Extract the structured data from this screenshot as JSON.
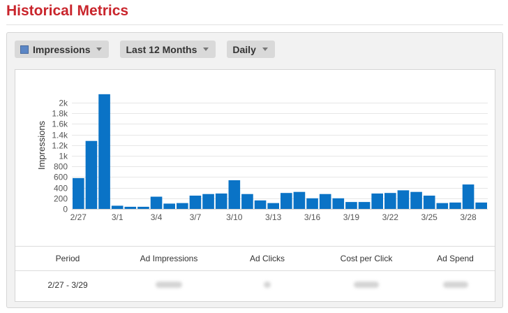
{
  "page": {
    "title": "Historical Metrics"
  },
  "toolbar": {
    "metric_label": "Impressions",
    "metric_swatch_color": "#5b86c5",
    "range_label": "Last 12 Months",
    "interval_label": "Daily"
  },
  "chart_data": {
    "type": "bar",
    "ylabel": "Impressions",
    "xlabel": "",
    "ylim": [
      0,
      2150
    ],
    "yticks": [
      0,
      200,
      400,
      600,
      800,
      1000,
      1200,
      1400,
      1600,
      1800,
      2000
    ],
    "ytick_labels": [
      "0",
      "200",
      "400",
      "600",
      "800",
      "1k",
      "1.2k",
      "1.4k",
      "1.6k",
      "1.8k",
      "2k"
    ],
    "bar_color": "#0a73c6",
    "grid": true,
    "categories": [
      "2/27",
      "2/28",
      "2/29",
      "3/1",
      "3/2",
      "3/3",
      "3/4",
      "3/5",
      "3/6",
      "3/7",
      "3/8",
      "3/9",
      "3/10",
      "3/11",
      "3/12",
      "3/13",
      "3/14",
      "3/15",
      "3/16",
      "3/17",
      "3/18",
      "3/19",
      "3/20",
      "3/21",
      "3/22",
      "3/23",
      "3/24",
      "3/25",
      "3/26",
      "3/27",
      "3/28",
      "3/29"
    ],
    "values": [
      580,
      1280,
      2160,
      60,
      40,
      40,
      230,
      100,
      110,
      250,
      280,
      290,
      540,
      280,
      160,
      110,
      300,
      320,
      200,
      280,
      200,
      130,
      130,
      290,
      300,
      350,
      320,
      250,
      110,
      120,
      460,
      120
    ],
    "xtick_labels": [
      "2/27",
      "3/1",
      "3/4",
      "3/7",
      "3/10",
      "3/13",
      "3/16",
      "3/19",
      "3/22",
      "3/25",
      "3/28"
    ]
  },
  "table": {
    "headers": [
      "Period",
      "Ad Impressions",
      "Ad Clicks",
      "Cost per Click",
      "Ad Spend"
    ],
    "row": {
      "period": "2/27 - 3/29"
    }
  }
}
